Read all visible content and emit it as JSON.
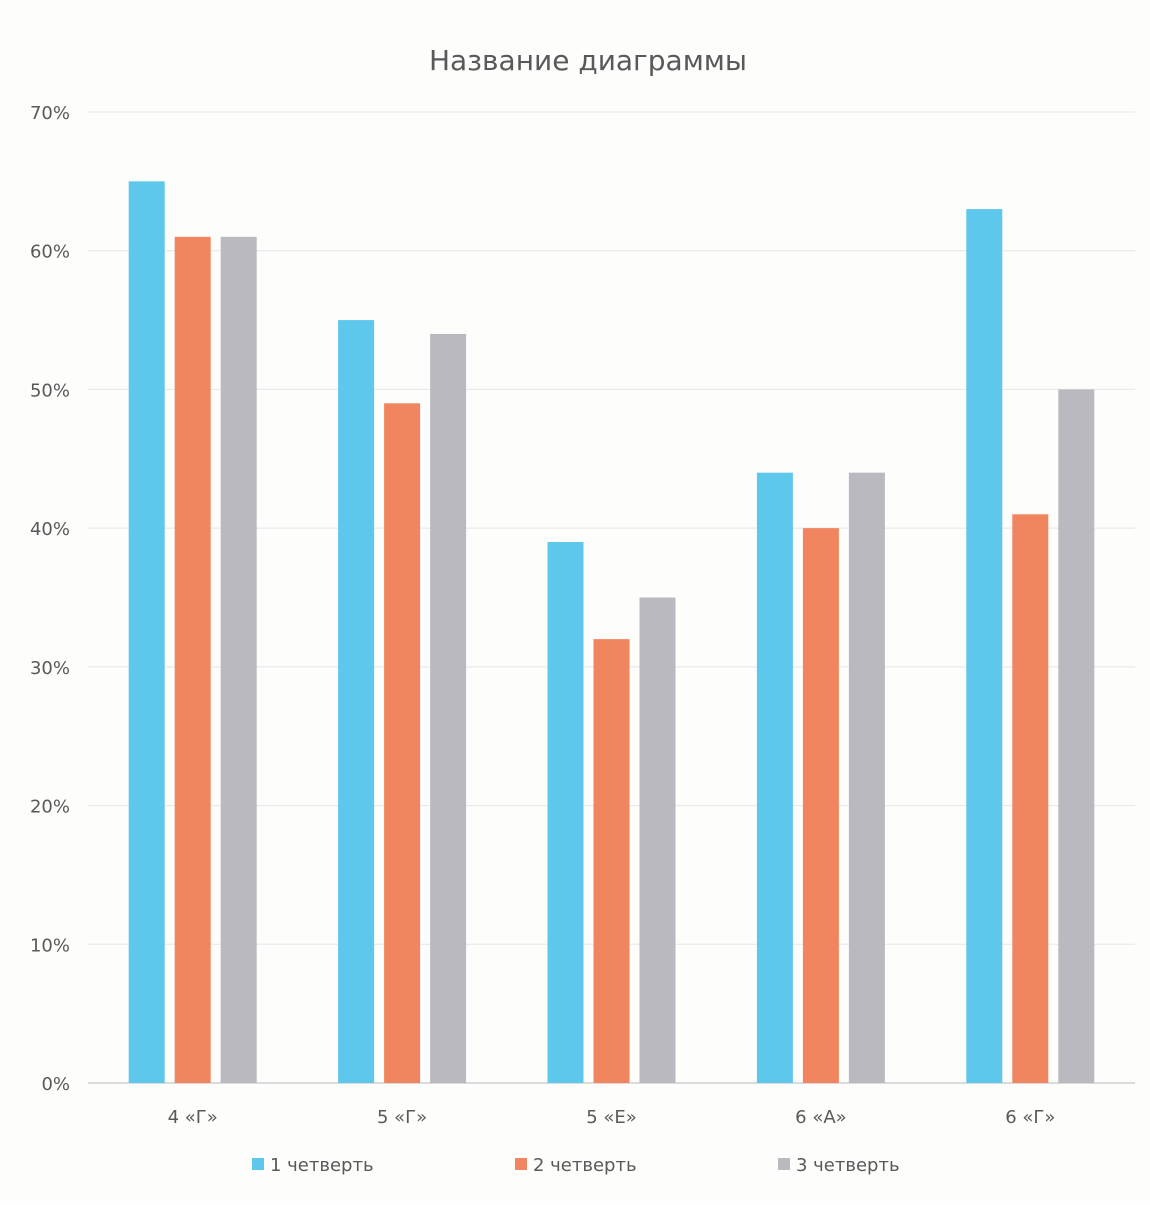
{
  "chart_data": {
    "type": "bar",
    "title": "Название диаграммы",
    "xlabel": "",
    "ylabel": "",
    "categories": [
      "4 «Г»",
      "5 «Г»",
      "5 «Е»",
      "6 «А»",
      "6 «Г»"
    ],
    "series": [
      {
        "name": "1 четверть",
        "values": [
          65,
          55,
          39,
          44,
          63
        ]
      },
      {
        "name": "2 четверть",
        "values": [
          61,
          49,
          32,
          40,
          41
        ]
      },
      {
        "name": "3 четверть",
        "values": [
          61,
          54,
          35,
          44,
          50
        ]
      }
    ],
    "ylim": [
      0,
      70
    ],
    "yticks": [
      "0%",
      "10%",
      "20%",
      "30%",
      "40%",
      "50%",
      "60%",
      "70%"
    ],
    "grid": true,
    "legend_position": "bottom",
    "colors": {
      "series": [
        "#5ec8ec",
        "#f0855f",
        "#b9b9bf"
      ],
      "grid": "#e6e6e6",
      "text": "#595959",
      "title": "#595959"
    }
  }
}
